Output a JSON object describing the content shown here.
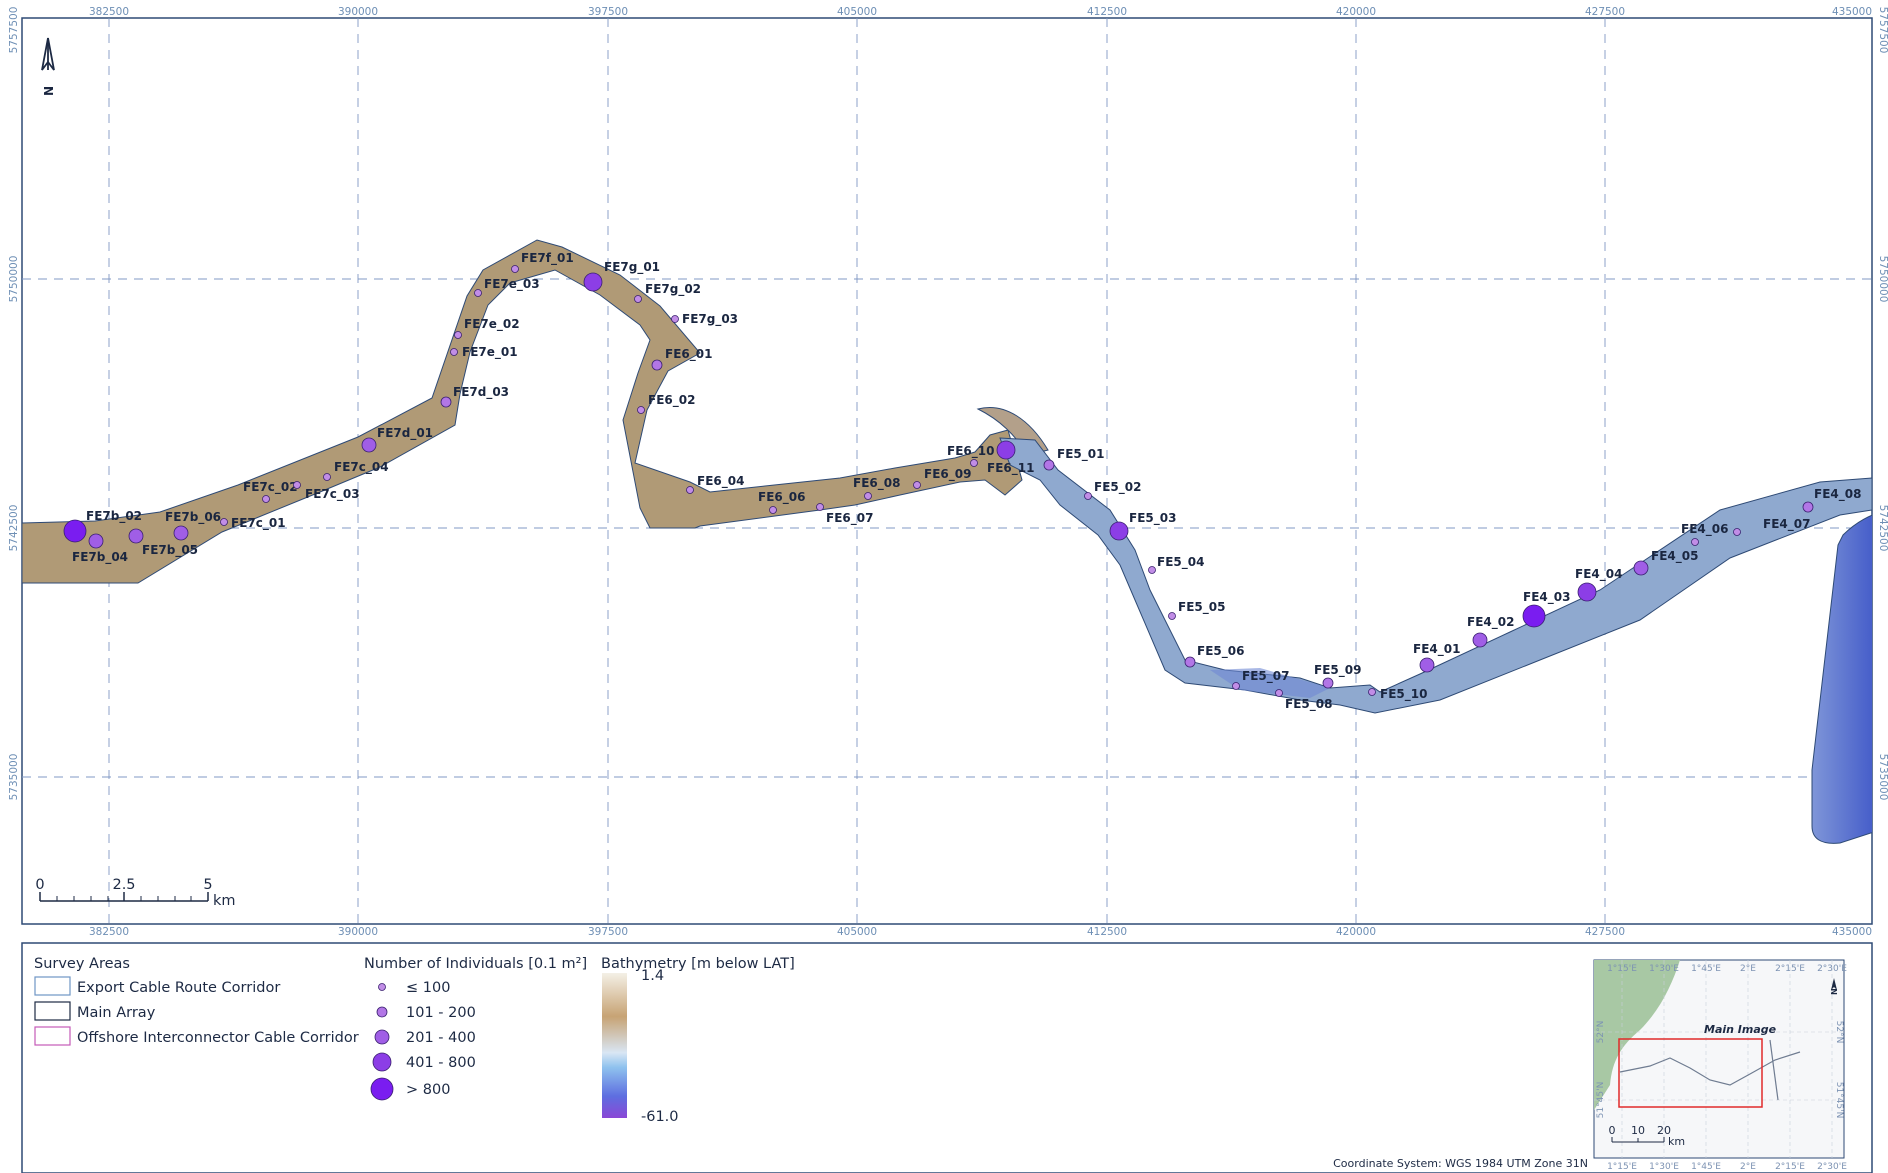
{
  "map": {
    "easting_ticks": [
      "382500",
      "390000",
      "397500",
      "405000",
      "412500",
      "420000",
      "427500",
      "435000"
    ],
    "northing_ticks": [
      "5757500",
      "5750000",
      "5742500",
      "5735000"
    ],
    "north_arrow_letter": "N",
    "scale_bar": {
      "labels": [
        "0",
        "2.5",
        "5"
      ],
      "unit": "km"
    },
    "coordinate_system": "Coordinate System: WGS 1984 UTM Zone 31N",
    "colors": {
      "frame": "#2e4a75",
      "grid": "#8098c4",
      "corridor_land": "#b09a76",
      "corridor_sea": "#8fa9cf",
      "deep": "#5a6fd0",
      "marker": "#8c3ee6"
    }
  },
  "sites": [
    {
      "id": "FE7b_02",
      "size": 5
    },
    {
      "id": "FE7b_04",
      "size": 3
    },
    {
      "id": "FE7b_05",
      "size": 3
    },
    {
      "id": "FE7b_06",
      "size": 3
    },
    {
      "id": "FE7c_01",
      "size": 1
    },
    {
      "id": "FE7c_02",
      "size": 1
    },
    {
      "id": "FE7c_03",
      "size": 1
    },
    {
      "id": "FE7c_04",
      "size": 1
    },
    {
      "id": "FE7d_01",
      "size": 3
    },
    {
      "id": "FE7d_03",
      "size": 2
    },
    {
      "id": "FE7e_01",
      "size": 1
    },
    {
      "id": "FE7e_02",
      "size": 1
    },
    {
      "id": "FE7e_03",
      "size": 1
    },
    {
      "id": "FE7f_01",
      "size": 1
    },
    {
      "id": "FE7g_01",
      "size": 4
    },
    {
      "id": "FE7g_02",
      "size": 1
    },
    {
      "id": "FE7g_03",
      "size": 1
    },
    {
      "id": "FE6_01",
      "size": 2
    },
    {
      "id": "FE6_02",
      "size": 1
    },
    {
      "id": "FE6_04",
      "size": 1
    },
    {
      "id": "FE6_06",
      "size": 1
    },
    {
      "id": "FE6_07",
      "size": 1
    },
    {
      "id": "FE6_08",
      "size": 1
    },
    {
      "id": "FE6_09",
      "size": 1
    },
    {
      "id": "FE6_10",
      "size": 4
    },
    {
      "id": "FE6_11",
      "size": 1
    },
    {
      "id": "FE5_01",
      "size": 2
    },
    {
      "id": "FE5_02",
      "size": 1
    },
    {
      "id": "FE5_03",
      "size": 4
    },
    {
      "id": "FE5_04",
      "size": 1
    },
    {
      "id": "FE5_05",
      "size": 1
    },
    {
      "id": "FE5_06",
      "size": 2
    },
    {
      "id": "FE5_07",
      "size": 1
    },
    {
      "id": "FE5_08",
      "size": 1
    },
    {
      "id": "FE5_09",
      "size": 2
    },
    {
      "id": "FE5_10",
      "size": 1
    },
    {
      "id": "FE4_01",
      "size": 3
    },
    {
      "id": "FE4_02",
      "size": 3
    },
    {
      "id": "FE4_03",
      "size": 5
    },
    {
      "id": "FE4_04",
      "size": 4
    },
    {
      "id": "FE4_05",
      "size": 3
    },
    {
      "id": "FE4_06",
      "size": 1
    },
    {
      "id": "FE4_07",
      "size": 1
    },
    {
      "id": "FE4_08",
      "size": 2
    }
  ],
  "legend": {
    "survey_areas": {
      "title": "Survey Areas",
      "items": [
        {
          "label": "Export Cable Route Corridor",
          "color": "#6f95c4"
        },
        {
          "label": "Main Array",
          "color": "#1d2a44"
        },
        {
          "label": "Offshore Interconnector Cable Corridor",
          "color": "#c45ab8"
        }
      ]
    },
    "individuals": {
      "title": "Number of Individuals [0.1 m²]",
      "items": [
        "≤ 100",
        "101 - 200",
        "201 - 400",
        "401 - 800",
        "> 800"
      ]
    },
    "bathymetry": {
      "title": "Bathymetry [m below LAT]",
      "max": "1.4",
      "min": "-61.0"
    }
  },
  "inset": {
    "lon_ticks": [
      "1°15'E",
      "1°30'E",
      "1°45'E",
      "2°E",
      "2°15'E",
      "2°30'E"
    ],
    "lat_ticks": [
      "52°N",
      "51°45'N"
    ],
    "label": "Main Image",
    "north_letter": "N",
    "scale_labels": [
      "0",
      "10",
      "20"
    ],
    "scale_unit": "km"
  }
}
